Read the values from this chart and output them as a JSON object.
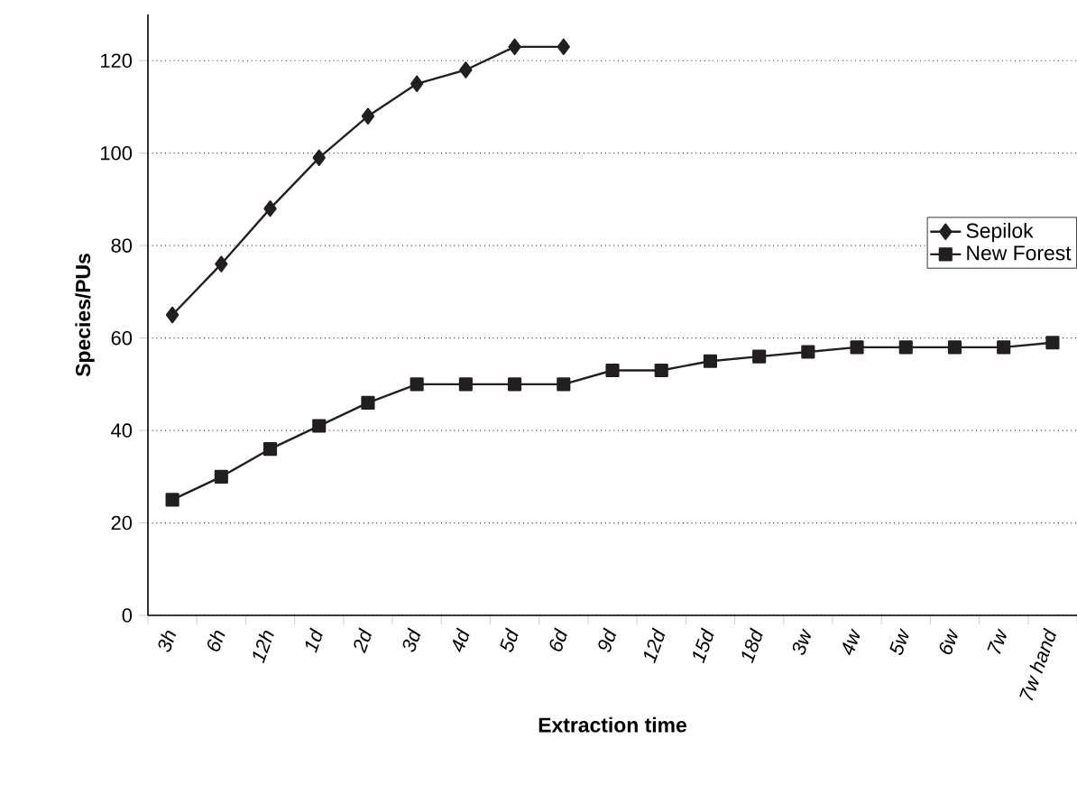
{
  "chart_data": {
    "type": "line",
    "xlabel": "Extraction time",
    "ylabel": "Species/PUs",
    "categories": [
      "3h",
      "6h",
      "12h",
      "1d",
      "2d",
      "3d",
      "4d",
      "5d",
      "6d",
      "9d",
      "12d",
      "15d",
      "18d",
      "3w",
      "4w",
      "5w",
      "6w",
      "7w",
      "7w hand"
    ],
    "series": [
      {
        "name": "Sepilok",
        "color": "#231f20",
        "marker": "diamond",
        "values": [
          65,
          76,
          88,
          99,
          108,
          115,
          118,
          123,
          123,
          null,
          null,
          null,
          null,
          null,
          null,
          null,
          null,
          null,
          null
        ]
      },
      {
        "name": "New Forest",
        "color": "#231f20",
        "marker": "square",
        "values": [
          25,
          30,
          36,
          41,
          46,
          50,
          50,
          50,
          50,
          53,
          53,
          55,
          56,
          57,
          58,
          58,
          58,
          58,
          59
        ]
      }
    ],
    "ylim": [
      0,
      130
    ],
    "yticks": [
      0,
      20,
      40,
      60,
      80,
      100,
      120
    ],
    "grid": "y",
    "legend": "right",
    "line_style": "solid"
  }
}
